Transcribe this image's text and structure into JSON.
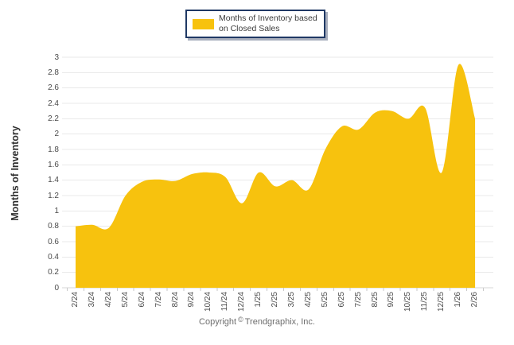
{
  "legend": {
    "label_line1": "Months of Inventory based",
    "label_line2": "on Closed Sales"
  },
  "y_axis": {
    "title": "Months of Inventory",
    "tick_labels": [
      "0",
      "0.2",
      "0.4",
      "0.6",
      "0.8",
      "1",
      "1.2",
      "1.4",
      "1.6",
      "1.8",
      "2",
      "2.2",
      "2.4",
      "2.6",
      "2.8",
      "3"
    ]
  },
  "x_axis": {
    "tick_labels": [
      "2/24",
      "3/24",
      "4/24",
      "5/24",
      "6/24",
      "7/24",
      "8/24",
      "9/24",
      "10/24",
      "11/24",
      "12/24",
      "1/25",
      "2/25",
      "3/25",
      "4/25",
      "5/25",
      "6/25",
      "7/25",
      "8/25",
      "9/25",
      "10/25",
      "11/25",
      "12/25",
      "1/26",
      "2/26"
    ]
  },
  "footer": {
    "prefix": "Copyright",
    "symbol": "©",
    "suffix": "Trendgraphix, Inc."
  },
  "colors": {
    "area_fill": "#F7C20E",
    "gridline": "#E9E9E9",
    "baseline": "#D4D4D4",
    "axis_tick": "#C9C9C9",
    "legend_border": "#1F3864",
    "legend_shadow": "#A9AFBD"
  },
  "chart_data": {
    "type": "area",
    "title": "Months of Inventory based on Closed Sales",
    "legend": [
      "Months of Inventory based on Closed Sales"
    ],
    "legend_position": "top-center",
    "categories": [
      "2/24",
      "3/24",
      "4/24",
      "5/24",
      "6/24",
      "7/24",
      "8/24",
      "9/24",
      "10/24",
      "11/24",
      "12/24",
      "1/25",
      "2/25",
      "3/25",
      "4/25",
      "5/25",
      "6/25",
      "7/25",
      "8/25",
      "9/25",
      "10/25",
      "11/25",
      "12/25",
      "1/26",
      "2/26"
    ],
    "series": [
      {
        "name": "Months of Inventory based on Closed Sales",
        "values": [
          0.8,
          0.82,
          0.78,
          1.2,
          1.38,
          1.41,
          1.39,
          1.48,
          1.5,
          1.44,
          1.1,
          1.5,
          1.32,
          1.4,
          1.28,
          1.8,
          2.1,
          2.06,
          2.28,
          2.3,
          2.2,
          2.34,
          1.5,
          2.9,
          2.2
        ]
      }
    ],
    "xlabel": "",
    "ylabel": "Months of Inventory",
    "ylim": [
      0,
      3
    ],
    "ytick_step": 0.2,
    "grid": true,
    "smoothing": "spline",
    "footer": "Copyright © Trendgraphix, Inc."
  }
}
